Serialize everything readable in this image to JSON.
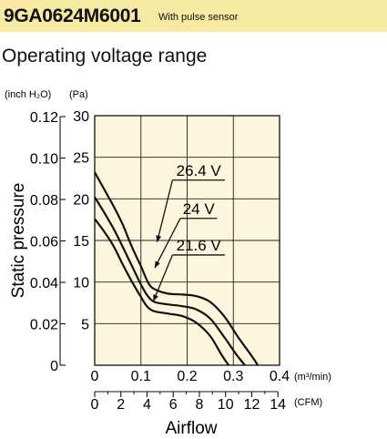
{
  "header": {
    "model": "9GA0624M6001",
    "suffix": "With pulse sensor",
    "background": "#f6e9a2"
  },
  "section_title": "Operating voltage range",
  "chart_data": {
    "type": "line",
    "xlabel": "Airflow",
    "ylabel": "Static pressure",
    "xlim": [
      0,
      0.4
    ],
    "ylim": [
      0,
      30
    ],
    "grid": true,
    "plot_background": "#fbf6dc",
    "x_ticks": [
      {
        "value": 0,
        "label": "0"
      },
      {
        "value": 0.1,
        "label": "0.1"
      },
      {
        "value": 0.2,
        "label": "0.2"
      },
      {
        "value": 0.3,
        "label": "0.3"
      },
      {
        "value": 0.4,
        "label": "0.4"
      }
    ],
    "x_unit": "(m³/min)",
    "x2_ticks": [
      {
        "value": 0,
        "label": "0"
      },
      {
        "value": 2,
        "label": "2"
      },
      {
        "value": 4,
        "label": "4"
      },
      {
        "value": 6,
        "label": "6"
      },
      {
        "value": 8,
        "label": "8"
      },
      {
        "value": 10,
        "label": "10"
      },
      {
        "value": 12,
        "label": "12"
      },
      {
        "value": 14,
        "label": "14"
      }
    ],
    "x2_unit": "(CFM)",
    "x2_per_x": 35.3147,
    "y_ticks": [
      {
        "value": 0,
        "label": ""
      },
      {
        "value": 5,
        "label": "5"
      },
      {
        "value": 10,
        "label": "10"
      },
      {
        "value": 15,
        "label": "15"
      },
      {
        "value": 20,
        "label": "20"
      },
      {
        "value": 25,
        "label": "25"
      },
      {
        "value": 30,
        "label": "30"
      }
    ],
    "y_unit": "(Pa)",
    "y2_ticks": [
      {
        "value": 0,
        "label": "0"
      },
      {
        "value": 0.02,
        "label": "0.02"
      },
      {
        "value": 0.04,
        "label": "0.04"
      },
      {
        "value": 0.06,
        "label": "0.06"
      },
      {
        "value": 0.08,
        "label": "0.08"
      },
      {
        "value": 0.1,
        "label": "0.10"
      },
      {
        "value": 0.12,
        "label": "0.12"
      }
    ],
    "y2_unit": "(inch H₂O)",
    "y2_per_y": 0.004015,
    "series": [
      {
        "name": "26.4 V",
        "color": "#111111",
        "points": [
          [
            0,
            23.2
          ],
          [
            0.02,
            21.2
          ],
          [
            0.04,
            19.2
          ],
          [
            0.06,
            17.0
          ],
          [
            0.08,
            14.3
          ],
          [
            0.1,
            11.9
          ],
          [
            0.118,
            9.7
          ],
          [
            0.135,
            9.0
          ],
          [
            0.16,
            8.6
          ],
          [
            0.19,
            8.5
          ],
          [
            0.22,
            8.3
          ],
          [
            0.25,
            7.6
          ],
          [
            0.28,
            5.9
          ],
          [
            0.31,
            3.4
          ],
          [
            0.34,
            1.1
          ],
          [
            0.353,
            0
          ]
        ]
      },
      {
        "name": "24 V",
        "color": "#111111",
        "points": [
          [
            0,
            20.2
          ],
          [
            0.02,
            18.4
          ],
          [
            0.04,
            16.5
          ],
          [
            0.06,
            14.3
          ],
          [
            0.08,
            12.0
          ],
          [
            0.1,
            9.7
          ],
          [
            0.115,
            8.3
          ],
          [
            0.13,
            7.6
          ],
          [
            0.16,
            7.3
          ],
          [
            0.19,
            7.1
          ],
          [
            0.22,
            6.7
          ],
          [
            0.25,
            5.6
          ],
          [
            0.28,
            3.4
          ],
          [
            0.305,
            1.4
          ],
          [
            0.325,
            0
          ]
        ]
      },
      {
        "name": "21.6 V",
        "color": "#111111",
        "points": [
          [
            0,
            17.6
          ],
          [
            0.02,
            16.1
          ],
          [
            0.04,
            14.4
          ],
          [
            0.06,
            12.2
          ],
          [
            0.08,
            10.1
          ],
          [
            0.1,
            8.2
          ],
          [
            0.113,
            7.1
          ],
          [
            0.128,
            6.5
          ],
          [
            0.16,
            6.2
          ],
          [
            0.19,
            5.9
          ],
          [
            0.22,
            5.1
          ],
          [
            0.25,
            3.5
          ],
          [
            0.275,
            1.2
          ],
          [
            0.29,
            0
          ]
        ]
      }
    ],
    "annotations": [
      {
        "series": "26.4 V",
        "text": "26.4 V",
        "x": 0.225,
        "y": 22.8,
        "target": [
          0.135,
          14.8
        ]
      },
      {
        "series": "24 V",
        "text": "24 V",
        "x": 0.225,
        "y": 18.2,
        "target": [
          0.13,
          11.7
        ]
      },
      {
        "series": "21.6 V",
        "text": "21.6 V",
        "x": 0.225,
        "y": 13.8,
        "target": [
          0.127,
          7.7
        ]
      }
    ]
  }
}
